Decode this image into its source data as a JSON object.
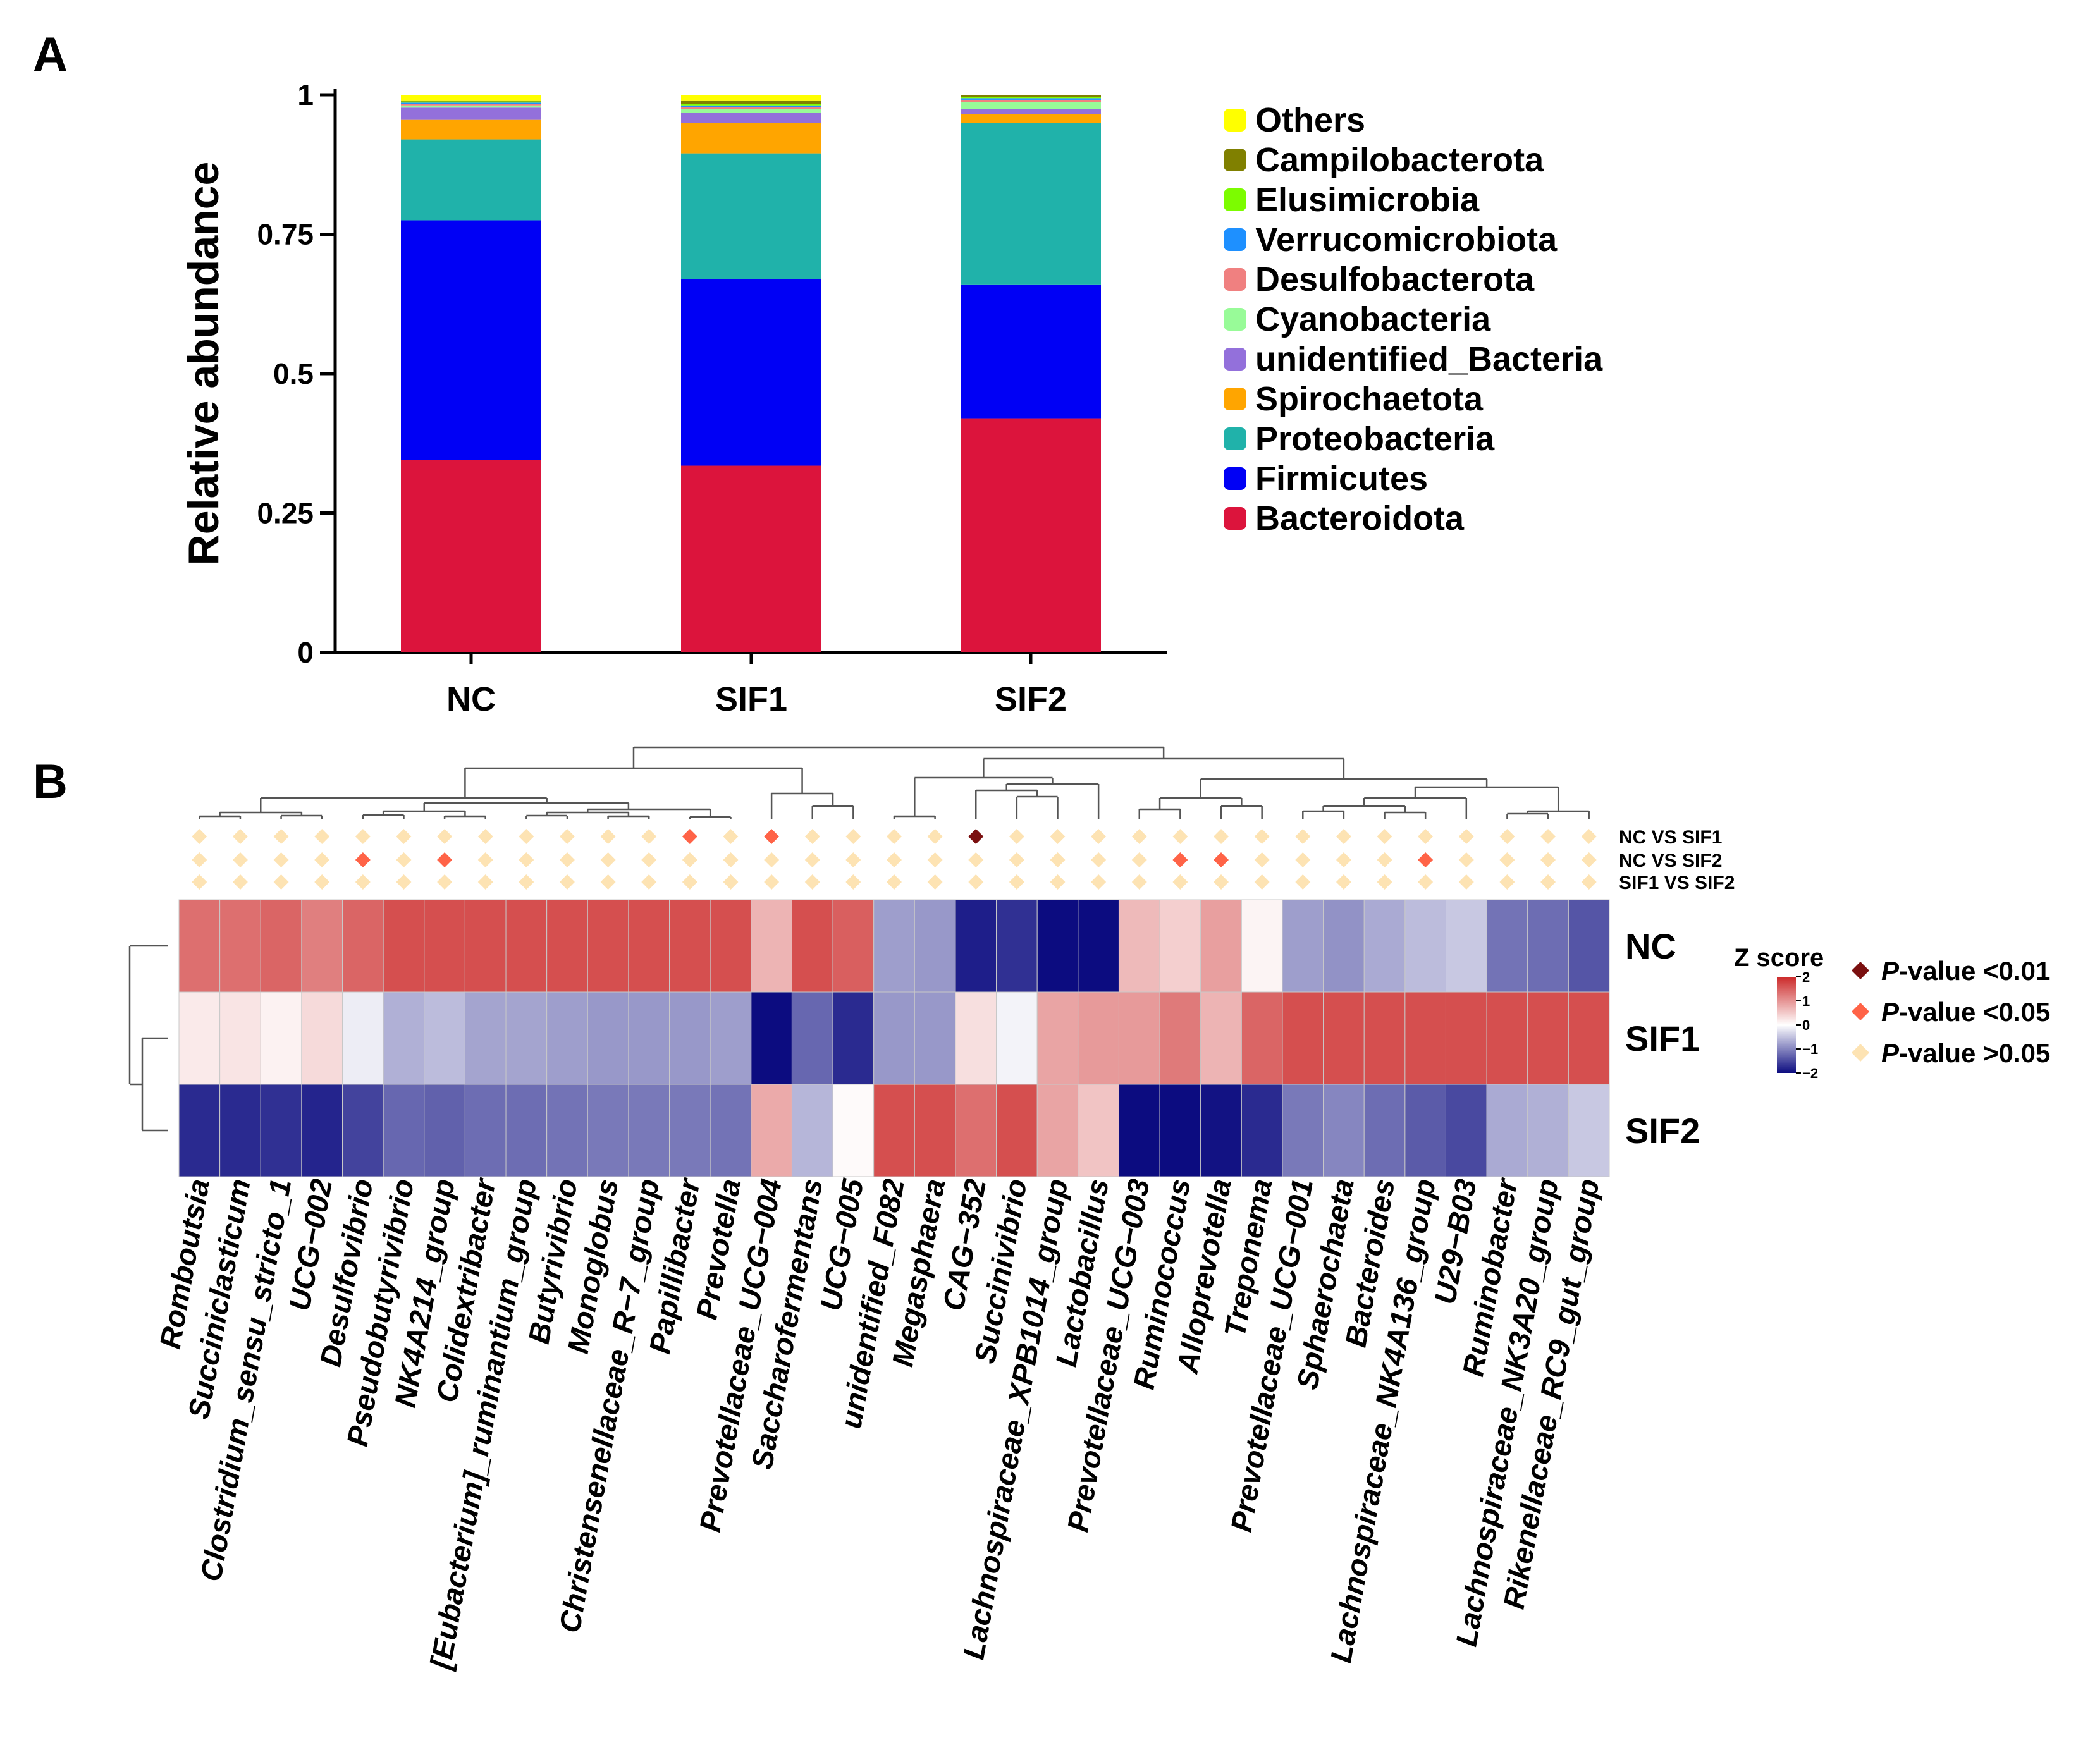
{
  "figure": {
    "panel_a_label": "A",
    "panel_b_label": "B"
  },
  "chart_data": [
    {
      "type": "bar",
      "subtype": "stacked",
      "panel": "A",
      "ylabel": "Relative abundance",
      "xlabel": "",
      "ylim": [
        0,
        1
      ],
      "yticks": [
        "0",
        "0.25",
        "0.5",
        "0.75",
        "1"
      ],
      "categories": [
        "NC",
        "SIF1",
        "SIF2"
      ],
      "legend_title": "",
      "legend_placement": "right",
      "series": [
        {
          "name": "Bacteroidota",
          "color": "#dc143c",
          "values": [
            0.345,
            0.335,
            0.42
          ]
        },
        {
          "name": "Firmicutes",
          "color": "#0000f5",
          "values": [
            0.43,
            0.335,
            0.24
          ]
        },
        {
          "name": "Proteobacteria",
          "color": "#20b2aa",
          "values": [
            0.145,
            0.225,
            0.29
          ]
        },
        {
          "name": "Spirochaetota",
          "color": "#ffa500",
          "values": [
            0.035,
            0.055,
            0.015
          ]
        },
        {
          "name": "unidentified_Bacteria",
          "color": "#9370db",
          "values": [
            0.022,
            0.018,
            0.01
          ]
        },
        {
          "name": "Cyanobacteria",
          "color": "#98fb98",
          "values": [
            0.004,
            0.006,
            0.012
          ]
        },
        {
          "name": "Desulfobacterota",
          "color": "#f08080",
          "values": [
            0.003,
            0.004,
            0.004
          ]
        },
        {
          "name": "Verrucomicrobiota",
          "color": "#1e90ff",
          "values": [
            0.002,
            0.003,
            0.003
          ]
        },
        {
          "name": "Elusimicrobia",
          "color": "#7cfc00",
          "values": [
            0.002,
            0.002,
            0.002
          ]
        },
        {
          "name": "Campilobacterota",
          "color": "#808000",
          "values": [
            0.002,
            0.007,
            0.004
          ]
        },
        {
          "name": "Others",
          "color": "#ffff00",
          "values": [
            0.01,
            0.01,
            0.0
          ]
        }
      ],
      "legend_order": [
        "Others",
        "Campilobacterota",
        "Elusimicrobia",
        "Verrucomicrobiota",
        "Desulfobacterota",
        "Cyanobacteria",
        "unidentified_Bacteria",
        "Spirochaetota",
        "Proteobacteria",
        "Firmicutes",
        "Bacteroidota"
      ]
    },
    {
      "type": "heatmap",
      "panel": "B",
      "rows": [
        "NC",
        "SIF1",
        "SIF2"
      ],
      "columns": [
        "Romboutsia",
        "Succiniclasticum",
        "Clostridium_sensu_stricto_1",
        "UCG−002",
        "Desulfovibrio",
        "Pseudobutyrivibrio",
        "NK4A214_group",
        "Colidextribacter",
        "[Eubacterium]_ruminantium_group",
        "Butyrivibrio",
        "Monoglobus",
        "Christensenellaceae_R−7_group",
        "Papillibacter",
        "Prevotella",
        "Prevotellaceae_UCG−004",
        "Saccharofermentans",
        "UCG−005",
        "unidentified_F082",
        "Megasphaera",
        "CAG−352",
        "Succinivibrio",
        "Lachnospiraceae_XPB1014_group",
        "Lactobacillus",
        "Prevotellaceae_UCG−003",
        "Ruminococcus",
        "Alloprevotella",
        "Treponema",
        "Prevotellaceae_UCG−001",
        "Sphaerochaeta",
        "Bacteroides",
        "Lachnospiraceae_NK4A136_group",
        "U29−B03",
        "Ruminobacter",
        "Lachnospiraceae_NK3A20_group",
        "Rikenellaceae_RC9_gut_group"
      ],
      "values": [
        [
          1.35,
          1.35,
          1.45,
          1.2,
          1.45,
          1.65,
          1.65,
          1.65,
          1.65,
          1.65,
          1.65,
          1.65,
          1.65,
          1.65,
          0.7,
          1.65,
          1.5,
          -0.8,
          -0.85,
          -1.85,
          -1.7,
          -2.0,
          -2.0,
          0.65,
          0.45,
          0.9,
          0.1,
          -0.8,
          -0.9,
          -0.7,
          -0.55,
          -0.45,
          -1.15,
          -1.2,
          -1.4
        ],
        [
          0.2,
          0.25,
          0.12,
          0.35,
          -0.15,
          -0.65,
          -0.55,
          -0.75,
          -0.75,
          -0.8,
          -0.85,
          -0.85,
          -0.85,
          -0.8,
          -2.0,
          -1.25,
          -1.75,
          -0.85,
          -0.85,
          0.3,
          -0.1,
          0.85,
          0.95,
          0.95,
          1.25,
          0.7,
          1.45,
          1.65,
          1.65,
          1.65,
          1.65,
          1.65,
          1.65,
          1.65,
          1.65
        ],
        [
          -1.75,
          -1.75,
          -1.7,
          -1.8,
          -1.55,
          -1.25,
          -1.3,
          -1.2,
          -1.2,
          -1.15,
          -1.1,
          -1.1,
          -1.1,
          -1.15,
          0.8,
          -0.6,
          0.05,
          1.65,
          1.65,
          1.35,
          1.65,
          0.85,
          0.55,
          -2.0,
          -2.0,
          -1.95,
          -1.75,
          -1.1,
          -1.0,
          -1.2,
          -1.35,
          -1.5,
          -0.7,
          -0.65,
          -0.45
        ]
      ],
      "zscore_title": "Z score",
      "zscore_ticks": [
        "2",
        "1",
        "0",
        "−1",
        "−2"
      ],
      "zscore_range": [
        -2,
        2
      ],
      "colors": {
        "high": "#cc2a2a",
        "mid": "#ffffff",
        "low": "#0c0c80"
      },
      "comparisons": [
        "NC VS SIF1",
        "NC VS SIF2",
        "SIF1 VS SIF2"
      ],
      "significance": [
        [
          "ns",
          "ns",
          "ns",
          "ns",
          "ns",
          "ns",
          "ns",
          "ns",
          "ns",
          "ns",
          "ns",
          "ns",
          "p05",
          "ns",
          "p05",
          "ns",
          "ns",
          "ns",
          "ns",
          "p01",
          "ns",
          "ns",
          "ns",
          "ns",
          "ns",
          "ns",
          "ns",
          "ns",
          "ns",
          "ns",
          "ns",
          "ns",
          "ns",
          "ns",
          "ns"
        ],
        [
          "ns",
          "ns",
          "ns",
          "ns",
          "p05",
          "ns",
          "p05",
          "ns",
          "ns",
          "ns",
          "ns",
          "ns",
          "ns",
          "ns",
          "ns",
          "ns",
          "ns",
          "ns",
          "ns",
          "ns",
          "ns",
          "ns",
          "ns",
          "ns",
          "p05",
          "p05",
          "ns",
          "ns",
          "ns",
          "ns",
          "p05",
          "ns",
          "ns",
          "ns",
          "ns"
        ],
        [
          "ns",
          "ns",
          "ns",
          "ns",
          "ns",
          "ns",
          "ns",
          "ns",
          "ns",
          "ns",
          "ns",
          "ns",
          "ns",
          "ns",
          "ns",
          "ns",
          "ns",
          "ns",
          "ns",
          "ns",
          "ns",
          "ns",
          "ns",
          "ns",
          "ns",
          "ns",
          "ns",
          "ns",
          "ns",
          "ns",
          "ns",
          "ns",
          "ns",
          "ns",
          "ns"
        ]
      ],
      "significance_legend": [
        {
          "key": "p01",
          "color": "#7b1010",
          "prefix": "P",
          "text": "-value <0.01"
        },
        {
          "key": "p05",
          "color": "#ff6347",
          "prefix": "P",
          "text": "-value <0.05"
        },
        {
          "key": "ns",
          "color": "#fde3b3",
          "prefix": "P",
          "text": "-value >0.05"
        }
      ]
    }
  ]
}
